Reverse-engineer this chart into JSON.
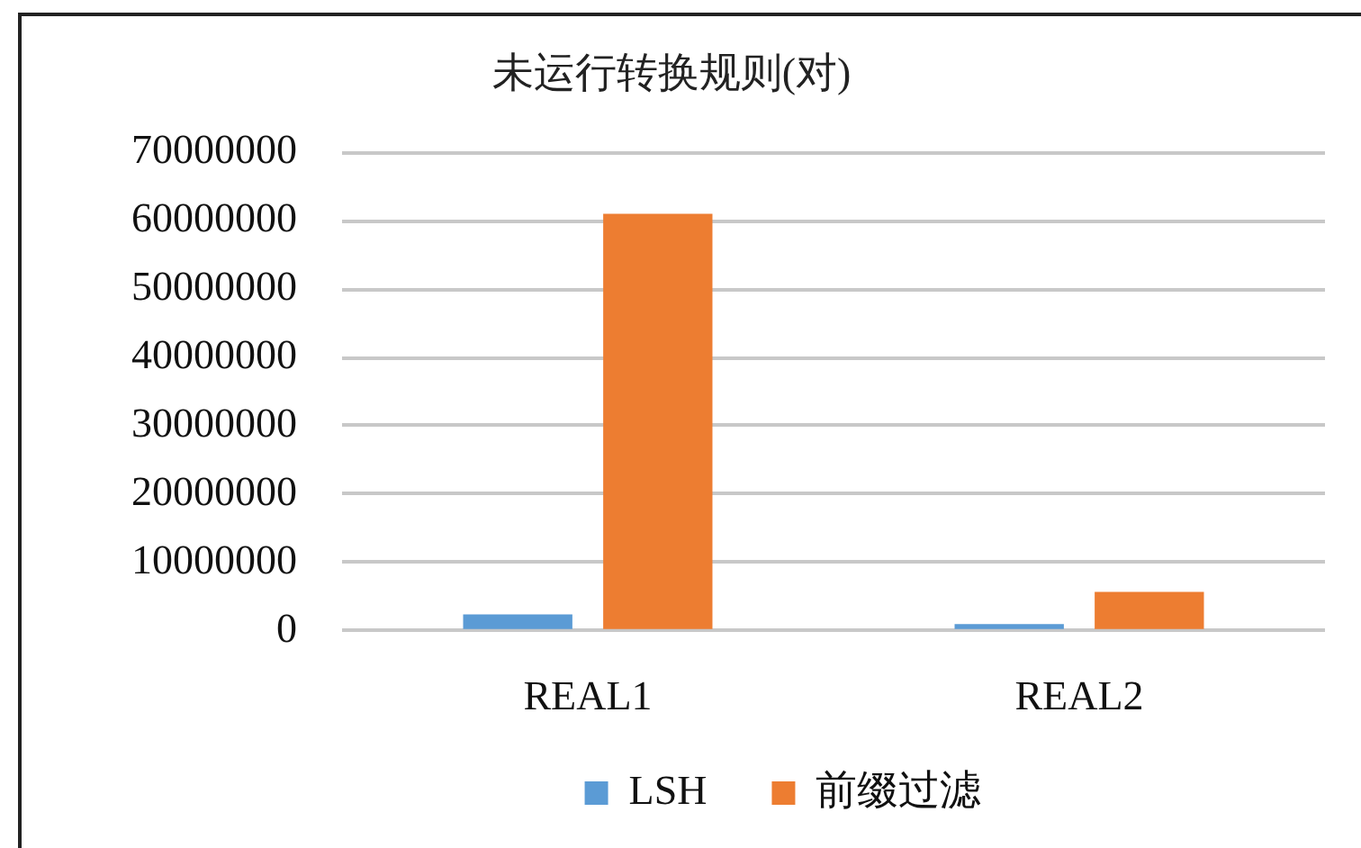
{
  "chart_data": {
    "type": "bar",
    "title": "未运行转换规则(对)",
    "categories": [
      "REAL1",
      "REAL2"
    ],
    "series": [
      {
        "name": "LSH",
        "color": "#5b9bd5",
        "values": [
          2400000,
          1000000
        ]
      },
      {
        "name": "前缀过滤",
        "color": "#ed7d31",
        "values": [
          61000000,
          5700000
        ]
      }
    ],
    "ylim": [
      0,
      70000000
    ],
    "yticks": [
      0,
      10000000,
      20000000,
      30000000,
      40000000,
      50000000,
      60000000,
      70000000
    ],
    "grid": "y",
    "legend": "bottom"
  }
}
